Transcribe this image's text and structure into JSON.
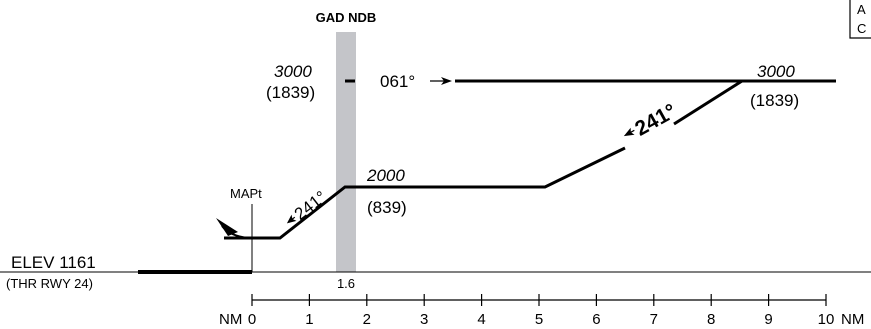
{
  "fix": {
    "name": "GAD NDB",
    "distance": "1.6"
  },
  "altitudes": {
    "left_upper": {
      "msl": "3000",
      "agl": "(1839)"
    },
    "right_upper": {
      "msl": "3000",
      "agl": "(1839)"
    },
    "step_down": {
      "msl": "2000",
      "agl": "(839)"
    }
  },
  "courses": {
    "outbound": "061°",
    "inbound_large": "241°",
    "inbound_small": "241°"
  },
  "mapt": "MAPt",
  "airport": {
    "elev": "ELEV 1161",
    "threshold": "(THR RWY 24)"
  },
  "scale": {
    "unit_left": "NM",
    "unit_right": "NM",
    "ticks": [
      "0",
      "1",
      "2",
      "3",
      "4",
      "5",
      "6",
      "7",
      "8",
      "9",
      "10"
    ]
  },
  "corner_box": {
    "line1": "A",
    "line2": "C"
  },
  "colors": {
    "fix_band": "#c4c5c9",
    "ink": "#000000"
  }
}
